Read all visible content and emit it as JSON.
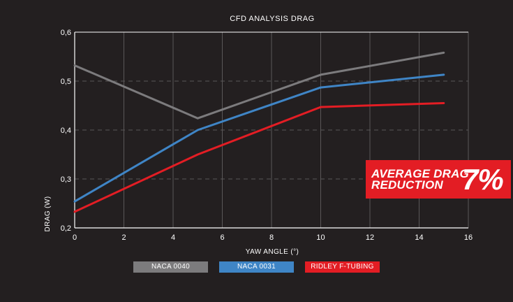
{
  "chart_data": {
    "type": "line",
    "title": "CFD ANALYSIS DRAG",
    "xlabel": "YAW ANGLE (°)",
    "ylabel": "DRAG (W)",
    "xlim": [
      0,
      16
    ],
    "ylim": [
      0.2,
      0.6
    ],
    "x_ticks": [
      0,
      2,
      4,
      6,
      8,
      10,
      12,
      14,
      16
    ],
    "x_tick_labels": [
      "0",
      "2",
      "4",
      "6",
      "8",
      "10",
      "12",
      "14",
      "16"
    ],
    "y_ticks": [
      0.2,
      0.3,
      0.4,
      0.5,
      0.6
    ],
    "y_tick_labels": [
      "0,2",
      "0,3",
      "0,4",
      "0,5",
      "0,6"
    ],
    "grid": true,
    "legend_position": "bottom",
    "series": [
      {
        "name": "NACA 0040",
        "color": "#7c7b7d",
        "x": [
          0,
          5,
          10,
          15
        ],
        "y": [
          0.532,
          0.424,
          0.513,
          0.558
        ]
      },
      {
        "name": "NACA 0031",
        "color": "#3f85c6",
        "x": [
          0,
          5,
          10,
          15
        ],
        "y": [
          0.254,
          0.4,
          0.487,
          0.513
        ]
      },
      {
        "name": "RIDLEY F-TUBING",
        "color": "#e31d24",
        "x": [
          0,
          5,
          10,
          15
        ],
        "y": [
          0.233,
          0.35,
          0.447,
          0.455
        ]
      }
    ],
    "annotation": {
      "line1": "AVERAGE DRAG",
      "line2": "REDUCTION",
      "value": "7%",
      "color": "#e31d24"
    }
  }
}
